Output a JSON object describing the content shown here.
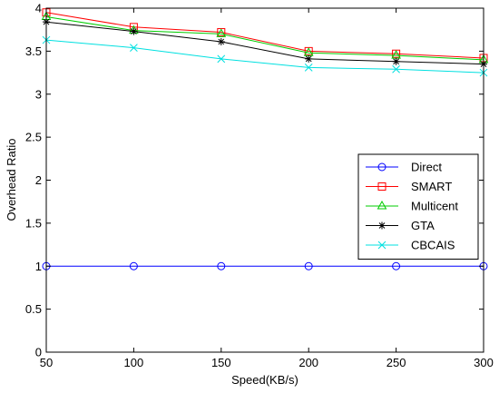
{
  "chart_data": {
    "type": "line",
    "title": "",
    "xlabel": "Speed(KB/s)",
    "ylabel": "Overhead Ratio",
    "x": [
      50,
      100,
      150,
      200,
      250,
      300
    ],
    "xlim": [
      50,
      300
    ],
    "ylim": [
      0,
      4
    ],
    "xticks": [
      50,
      100,
      150,
      200,
      250,
      300
    ],
    "yticks": [
      0,
      0.5,
      1,
      1.5,
      2,
      2.5,
      3,
      3.5,
      4
    ],
    "xtick_labels": [
      "50",
      "100",
      "150",
      "200",
      "250",
      "300"
    ],
    "ytick_labels": [
      "0",
      "0.5",
      "1",
      "1.5",
      "2",
      "2.5",
      "3",
      "3.5",
      "4"
    ],
    "grid": false,
    "legend_position": "right",
    "series": [
      {
        "name": "Direct",
        "color": "#0000ff",
        "marker": "circle",
        "values": [
          1.0,
          1.0,
          1.0,
          1.0,
          1.0,
          1.0
        ]
      },
      {
        "name": "SMART",
        "color": "#ff0000",
        "marker": "square",
        "values": [
          3.95,
          3.78,
          3.72,
          3.5,
          3.47,
          3.42
        ]
      },
      {
        "name": "Multicent",
        "color": "#00cc00",
        "marker": "triangle",
        "values": [
          3.9,
          3.74,
          3.7,
          3.48,
          3.45,
          3.4
        ]
      },
      {
        "name": "GTA",
        "color": "#000000",
        "marker": "star",
        "values": [
          3.84,
          3.73,
          3.61,
          3.41,
          3.38,
          3.35
        ]
      },
      {
        "name": "CBCAIS",
        "color": "#00e0e0",
        "marker": "x",
        "values": [
          3.63,
          3.54,
          3.41,
          3.31,
          3.29,
          3.25
        ]
      }
    ]
  }
}
